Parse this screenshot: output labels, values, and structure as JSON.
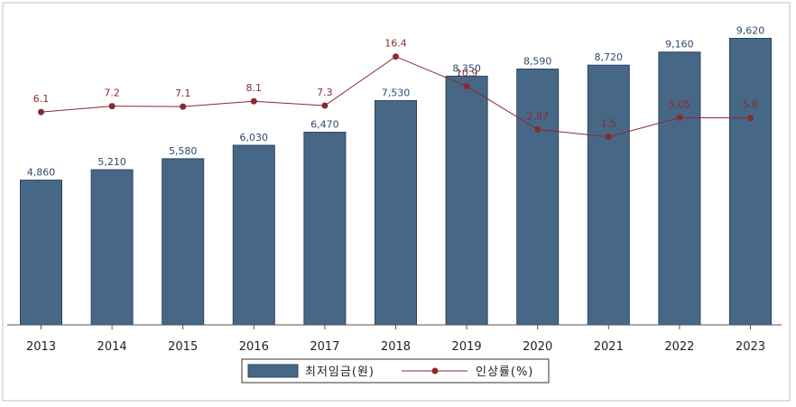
{
  "chart_data": {
    "type": "bar",
    "categories": [
      "2013",
      "2014",
      "2015",
      "2016",
      "2017",
      "2018",
      "2019",
      "2020",
      "2021",
      "2022",
      "2023"
    ],
    "series": [
      {
        "name": "최저임금(원)",
        "type": "bar",
        "values": [
          4860,
          5210,
          5580,
          6030,
          6470,
          7530,
          8350,
          8590,
          8720,
          9160,
          9620
        ],
        "labels": [
          "4,860",
          "5,210",
          "5,580",
          "6,030",
          "6,470",
          "7,530",
          "8,350",
          "8,590",
          "8,720",
          "9,160",
          "9,620"
        ]
      },
      {
        "name": "인상률(%)",
        "type": "line",
        "values": [
          6.1,
          7.2,
          7.1,
          8.1,
          7.3,
          16.4,
          10.9,
          2.87,
          1.5,
          5.05,
          5.0
        ],
        "labels": [
          "6.1",
          "7.2",
          "7.1",
          "8.1",
          "7.3",
          "16.4",
          "10.9",
          "2.87",
          "1.5",
          "5.05",
          "5.0"
        ]
      }
    ],
    "legend": {
      "position": "bottom"
    },
    "colors": {
      "bar": "#476787",
      "bar_edge": "#2c4560",
      "line": "#8b2a2e"
    }
  }
}
